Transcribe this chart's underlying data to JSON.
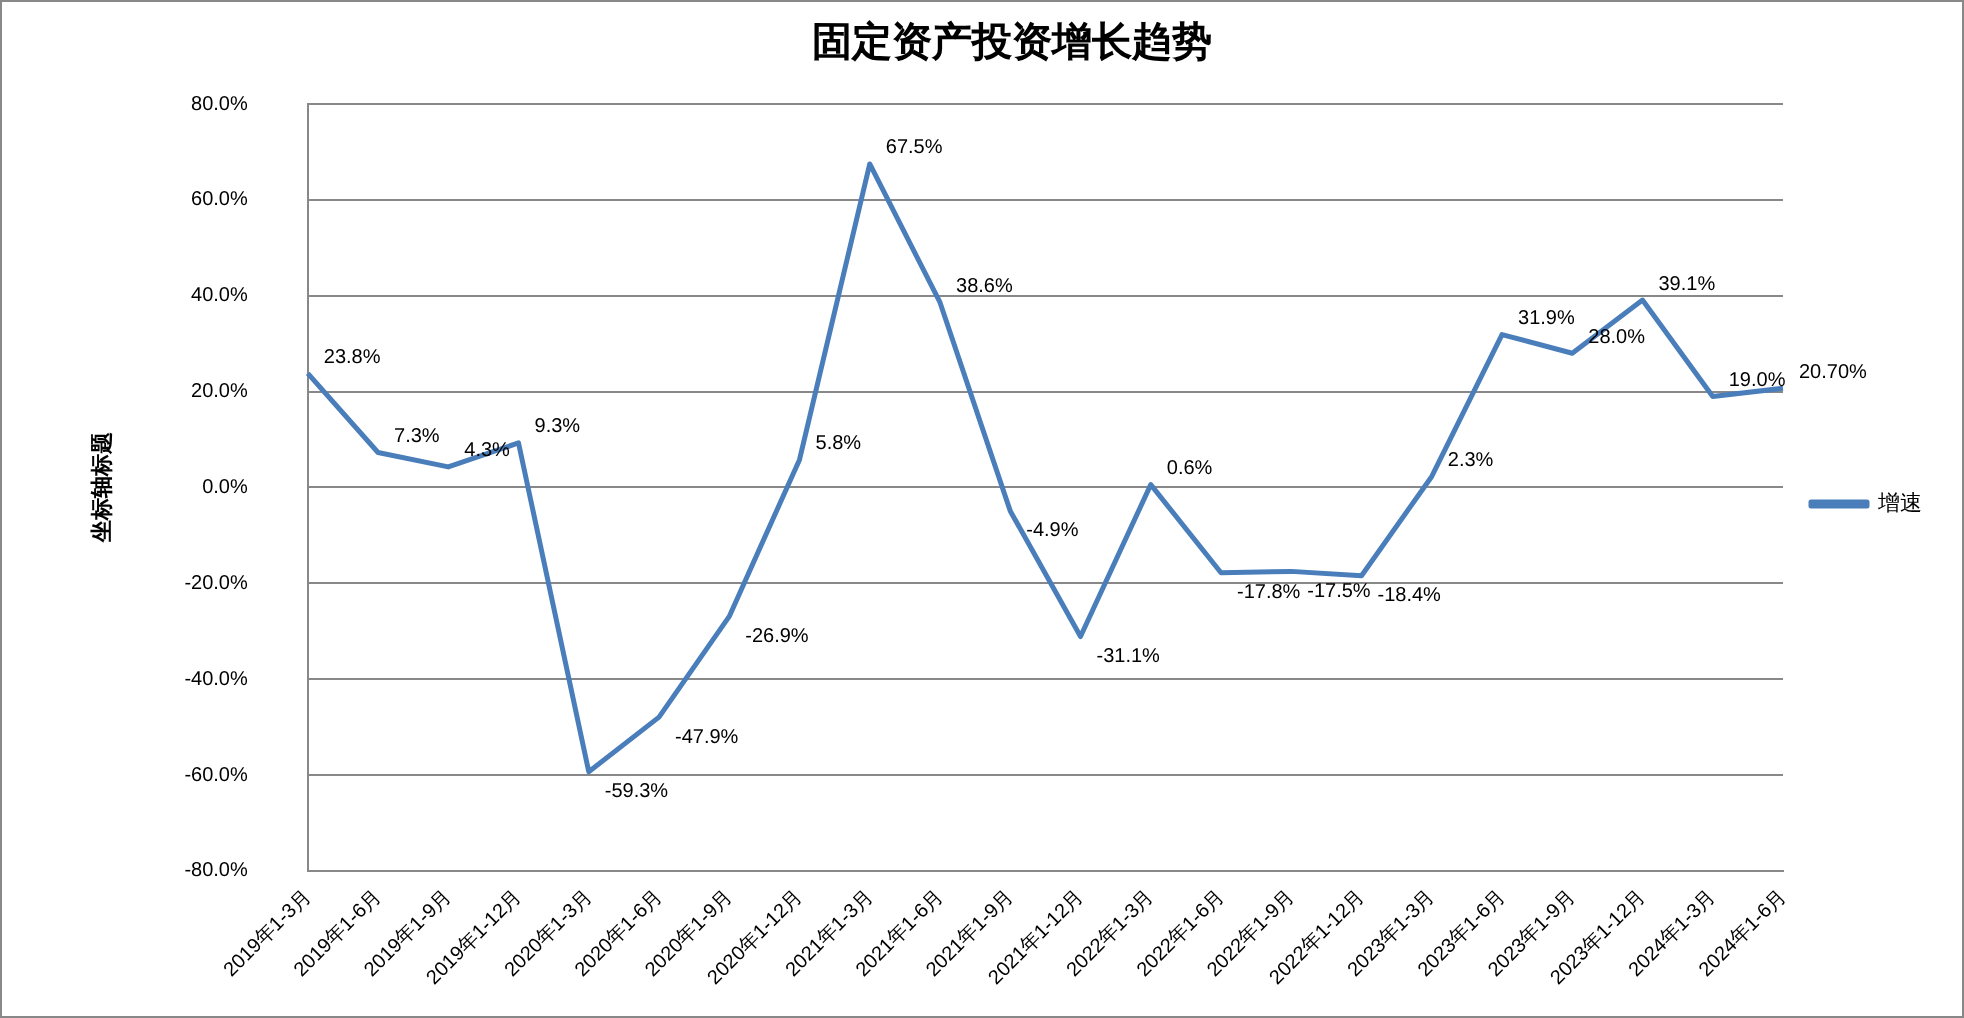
{
  "chart_data": {
    "type": "line",
    "title": "固定资产投资增长趋势",
    "ylabel": "坐标轴标题",
    "categories": [
      "2019年1-3月",
      "2019年1-6月",
      "2019年1-9月",
      "2019年1-12月",
      "2020年1-3月",
      "2020年1-6月",
      "2020年1-9月",
      "2020年1-12月",
      "2021年1-3月",
      "2021年1-6月",
      "2021年1-9月",
      "2021年1-12月",
      "2022年1-3月",
      "2022年1-6月",
      "2022年1-9月",
      "2022年1-12月",
      "2023年1-3月",
      "2023年1-6月",
      "2023年1-9月",
      "2023年1-12月",
      "2024年1-3月",
      "2024年1-6月"
    ],
    "series": [
      {
        "name": "增速",
        "color": "#4a7ebb",
        "values": [
          23.8,
          7.3,
          4.3,
          9.3,
          -59.3,
          -47.9,
          -26.9,
          5.8,
          67.5,
          38.6,
          -4.9,
          -31.1,
          0.6,
          -17.8,
          -17.5,
          -18.4,
          2.3,
          31.9,
          28.0,
          39.1,
          19.0,
          20.7
        ],
        "value_labels": [
          "23.8%",
          "7.3%",
          "4.3%",
          "9.3%",
          "-59.3%",
          "-47.9%",
          "-26.9%",
          "5.8%",
          "67.5%",
          "38.6%",
          "-4.9%",
          "-31.1%",
          "0.6%",
          "-17.8%",
          "-17.5%",
          "-18.4%",
          "2.3%",
          "31.9%",
          "28.0%",
          "39.1%",
          "19.0%",
          "20.70%"
        ]
      }
    ],
    "ylim": [
      -80,
      80
    ],
    "yticks": [
      {
        "value": -80,
        "label": "-80.0%"
      },
      {
        "value": -60,
        "label": "-60.0%"
      },
      {
        "value": -40,
        "label": "-40.0%"
      },
      {
        "value": -20,
        "label": "-20.0%"
      },
      {
        "value": 0,
        "label": "0.0%"
      },
      {
        "value": 20,
        "label": "20.0%"
      },
      {
        "value": 40,
        "label": "40.0%"
      },
      {
        "value": 60,
        "label": "60.0%"
      },
      {
        "value": 80,
        "label": "80.0%"
      }
    ],
    "grid": "y",
    "legend": "right",
    "marker": "none",
    "line_style": "solid"
  }
}
